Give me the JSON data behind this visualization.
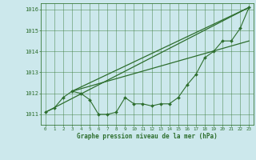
{
  "title": "",
  "xlabel": "Graphe pression niveau de la mer (hPa)",
  "bg_color": "#cce8ec",
  "grid_color": "#3a7a3a",
  "line_color": "#2d6e2d",
  "text_color": "#2d6e2d",
  "ylim": [
    1010.5,
    1016.3
  ],
  "xlim": [
    -0.5,
    23.5
  ],
  "yticks": [
    1011,
    1012,
    1013,
    1014,
    1015,
    1016
  ],
  "xticks": [
    0,
    1,
    2,
    3,
    4,
    5,
    6,
    7,
    8,
    9,
    10,
    11,
    12,
    13,
    14,
    15,
    16,
    17,
    18,
    19,
    20,
    21,
    22,
    23
  ],
  "series1_x": [
    0,
    1,
    2,
    3,
    4,
    5,
    6,
    7,
    8,
    9,
    10,
    11,
    12,
    13,
    14,
    15,
    16,
    17,
    18,
    19,
    20,
    21,
    22,
    23
  ],
  "series1_y": [
    1011.1,
    1011.3,
    1011.8,
    1012.1,
    1012.0,
    1011.7,
    1011.0,
    1011.0,
    1011.1,
    1011.8,
    1011.5,
    1011.5,
    1011.4,
    1011.5,
    1011.5,
    1011.8,
    1012.4,
    1012.9,
    1013.7,
    1014.0,
    1014.5,
    1014.5,
    1015.1,
    1016.1
  ],
  "trend1_x": [
    0,
    23
  ],
  "trend1_y": [
    1011.1,
    1016.1
  ],
  "trend2_x": [
    3,
    23
  ],
  "trend2_y": [
    1012.1,
    1016.1
  ],
  "trend3_x": [
    3,
    23
  ],
  "trend3_y": [
    1012.1,
    1014.5
  ]
}
